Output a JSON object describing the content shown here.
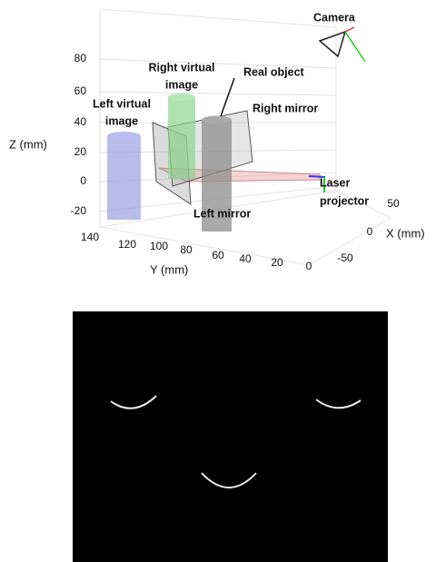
{
  "diagram": {
    "labels": {
      "camera": "Camera",
      "right_virtual_image": [
        "Right virtual",
        "image"
      ],
      "real_object": "Real object",
      "right_mirror": "Right mirror",
      "left_virtual_image": [
        "Left virtual",
        "image"
      ],
      "left_mirror": "Left mirror",
      "laser_projector": [
        "Laser",
        "projector"
      ]
    },
    "axes": {
      "z": {
        "label": "Z (mm)",
        "ticks": [
          80,
          60,
          40,
          20,
          0,
          -20
        ]
      },
      "y": {
        "label": "Y (mm)",
        "ticks": [
          140,
          120,
          100,
          80,
          60,
          40,
          20,
          0
        ]
      },
      "x": {
        "label": "X (mm)",
        "ticks": [
          50,
          0,
          -50
        ]
      }
    }
  }
}
